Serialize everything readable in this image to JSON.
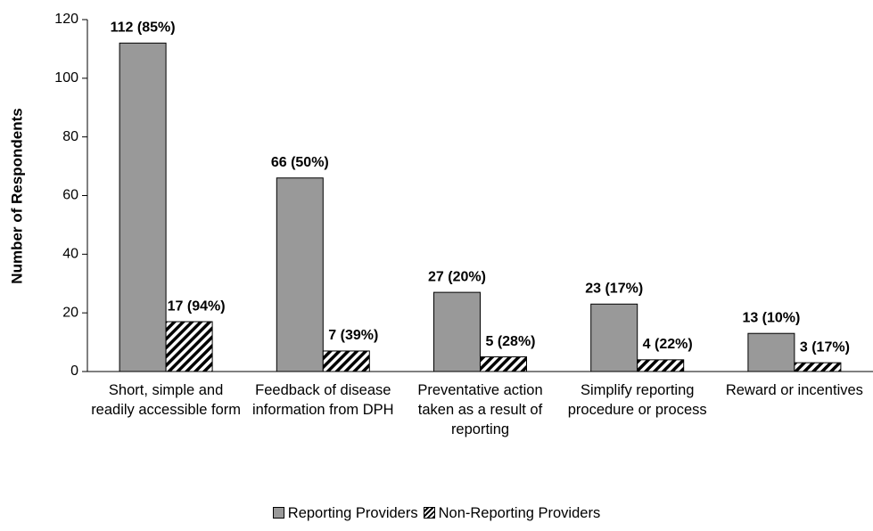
{
  "chart_data": {
    "type": "bar",
    "y_label": "Number of Respondents",
    "categories": [
      "Short, simple and readily accessible form",
      "Feedback of disease information from DPH",
      "Preventative action taken as a result of reporting",
      "Simplify reporting procedure or process",
      "Reward or incentives"
    ],
    "series": [
      {
        "name": "Reporting Providers",
        "color": "#999999",
        "hatch": false,
        "values": [
          112,
          66,
          27,
          23,
          13
        ],
        "value_labels": [
          "112 (85%)",
          "66 (50%)",
          "27 (20%)",
          "23 (17%)",
          "13 (10%)"
        ]
      },
      {
        "name": "Non-Reporting Providers",
        "color": "#000000",
        "hatch": true,
        "values": [
          17,
          7,
          5,
          4,
          3
        ],
        "value_labels": [
          "17 (94%)",
          "7 (39%)",
          "5 (28%)",
          "4 (22%)",
          "3 (17%)"
        ]
      }
    ],
    "ylim": [
      0,
      120
    ],
    "yticks": [
      0,
      20,
      40,
      60,
      80,
      100,
      120
    ],
    "grid": false,
    "legend": "bottom"
  }
}
